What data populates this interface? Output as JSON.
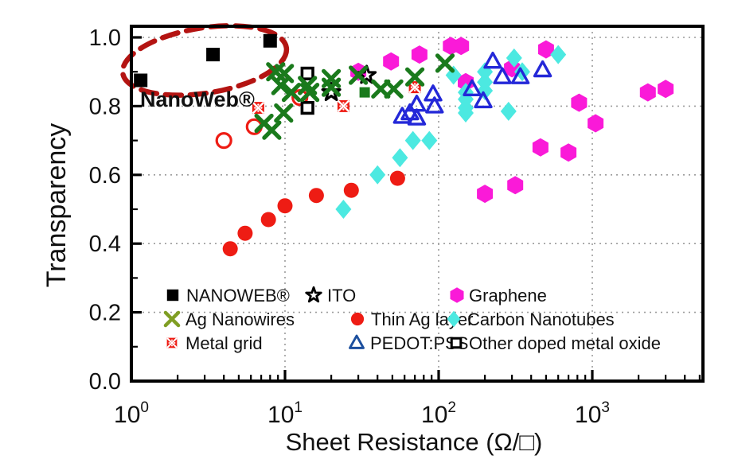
{
  "chart_data": {
    "type": "scatter",
    "title": "",
    "xlabel": "Sheet Resistance (Ω/□)",
    "ylabel": "Transparency",
    "x_scale": "log",
    "xlim": [
      1,
      5000
    ],
    "ylim": [
      0.0,
      1.0
    ],
    "background": "#ffffff",
    "grid": {
      "style": "dotted",
      "color": "#9b9b9b",
      "x_values": [
        10,
        100,
        1000
      ],
      "y_values": [
        0.2,
        0.4,
        0.6,
        0.8,
        1.0
      ]
    },
    "x_ticks": [
      {
        "base": "10",
        "exp": "0",
        "value": 1
      },
      {
        "base": "10",
        "exp": "1",
        "value": 10
      },
      {
        "base": "10",
        "exp": "2",
        "value": 100
      },
      {
        "base": "10",
        "exp": "3",
        "value": 1000
      }
    ],
    "y_ticks": [
      {
        "label": "0.0",
        "value": 0.0
      },
      {
        "label": "0.2",
        "value": 0.2
      },
      {
        "label": "0.4",
        "value": 0.4
      },
      {
        "label": "0.6",
        "value": 0.6
      },
      {
        "label": "0.8",
        "value": 0.8
      },
      {
        "label": "1.0",
        "value": 1.0
      }
    ],
    "annotation": {
      "text": "NanoWeb®",
      "color": "#000000",
      "ellipse_color": "#b41412"
    },
    "series": [
      {
        "name": "NANOWEB®",
        "marker": "square-filled",
        "color": "#000000",
        "in_legend": true,
        "points": [
          [
            1.15,
            0.875
          ],
          [
            3.4,
            0.95
          ],
          [
            8,
            0.99
          ]
        ]
      },
      {
        "name": "Ag Nanowires",
        "marker": "x-cross",
        "color": "#1a7a1c",
        "legend_color": "#7f9e23",
        "in_legend": true,
        "points": [
          [
            7.3,
            0.75
          ],
          [
            8.2,
            0.73
          ],
          [
            8.7,
            0.9
          ],
          [
            9.9,
            0.895
          ],
          [
            9.4,
            0.86
          ],
          [
            11,
            0.84
          ],
          [
            9.8,
            0.78
          ],
          [
            14,
            0.86
          ],
          [
            14.5,
            0.84
          ],
          [
            20,
            0.88
          ],
          [
            20,
            0.855
          ],
          [
            30,
            0.89
          ],
          [
            42,
            0.85
          ],
          [
            51,
            0.85
          ],
          [
            70,
            0.885
          ],
          [
            110,
            0.925
          ]
        ]
      },
      {
        "name": "Metal grid",
        "marker": "square-cross",
        "color": "#ee1c14",
        "in_legend": true,
        "points": [
          [
            6.7,
            0.795
          ],
          [
            24,
            0.8
          ],
          [
            70,
            0.855
          ]
        ]
      },
      {
        "name": "ITO",
        "marker": "star-open",
        "color": "#000000",
        "in_legend": true,
        "points": [
          [
            20,
            0.84
          ],
          [
            34,
            0.89
          ]
        ]
      },
      {
        "name": "Thin Ag layer",
        "marker": "circle-filled",
        "color": "#ee1c14",
        "in_legend": true,
        "points": [
          [
            4.4,
            0.385
          ],
          [
            5.5,
            0.43
          ],
          [
            7.8,
            0.47
          ],
          [
            10,
            0.51
          ],
          [
            16,
            0.54
          ],
          [
            27,
            0.555
          ],
          [
            54,
            0.59
          ]
        ]
      },
      {
        "name": "PEDOT:PSS",
        "marker": "triangle-open",
        "color": "#2428d8",
        "legend_color": "#1c4f9e",
        "in_legend": true,
        "points": [
          [
            58,
            0.77
          ],
          [
            65,
            0.78
          ],
          [
            72,
            0.765
          ],
          [
            72,
            0.805
          ],
          [
            92,
            0.835
          ],
          [
            94,
            0.8
          ],
          [
            165,
            0.85
          ],
          [
            195,
            0.815
          ],
          [
            225,
            0.93
          ],
          [
            260,
            0.885
          ],
          [
            340,
            0.885
          ],
          [
            475,
            0.905
          ]
        ]
      },
      {
        "name": "Graphene",
        "marker": "hexagon-filled",
        "color": "#fa1ad8",
        "in_legend": true,
        "points": [
          [
            30,
            0.9
          ],
          [
            49,
            0.93
          ],
          [
            75,
            0.95
          ],
          [
            120,
            0.975
          ],
          [
            140,
            0.975
          ],
          [
            150,
            0.87
          ],
          [
            200,
            0.545
          ],
          [
            300,
            0.91
          ],
          [
            315,
            0.57
          ],
          [
            460,
            0.68
          ],
          [
            500,
            0.965
          ],
          [
            700,
            0.665
          ],
          [
            820,
            0.81
          ],
          [
            1050,
            0.75
          ],
          [
            2300,
            0.84
          ],
          [
            3000,
            0.85
          ]
        ]
      },
      {
        "name": "Carbon Nanotubes",
        "marker": "diamond-filled",
        "color": "#4ce9e1",
        "in_legend": true,
        "points": [
          [
            24,
            0.5
          ],
          [
            40,
            0.6
          ],
          [
            56,
            0.65
          ],
          [
            68,
            0.7
          ],
          [
            87,
            0.7
          ],
          [
            125,
            0.89
          ],
          [
            150,
            0.84
          ],
          [
            150,
            0.82
          ],
          [
            150,
            0.795
          ],
          [
            150,
            0.78
          ],
          [
            200,
            0.9
          ],
          [
            200,
            0.87
          ],
          [
            200,
            0.845
          ],
          [
            285,
            0.785
          ],
          [
            310,
            0.94
          ],
          [
            350,
            0.9
          ],
          [
            600,
            0.95
          ]
        ]
      },
      {
        "name": "Other doped metal oxide",
        "marker": "square-open",
        "color": "#000000",
        "in_legend": true,
        "points": [
          [
            14,
            0.895
          ],
          [
            14,
            0.795
          ]
        ]
      },
      {
        "name": "",
        "marker": "circle-open",
        "color": "#ee1c14",
        "in_legend": false,
        "points": [
          [
            4,
            0.7
          ],
          [
            6.3,
            0.74
          ],
          [
            12.5,
            0.825
          ]
        ]
      },
      {
        "name": "",
        "marker": "square-filled-small",
        "color": "#1a7a1c",
        "in_legend": false,
        "points": [
          [
            33,
            0.84
          ]
        ]
      }
    ]
  }
}
